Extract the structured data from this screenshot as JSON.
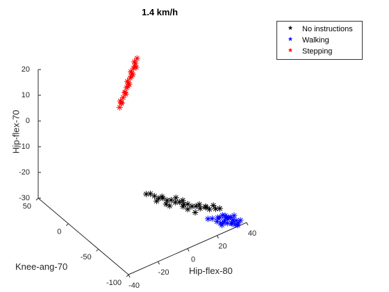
{
  "chart_data": {
    "type": "scatter",
    "projection": "3d",
    "title": "1.4 km/h",
    "xlabel": "Hip-flex-80",
    "ylabel": "Knee-ang-70",
    "zlabel": "Hip-flex-70",
    "xlim": [
      -40,
      40
    ],
    "ylim": [
      -100,
      50
    ],
    "zlim": [
      -30,
      20
    ],
    "xticks": [
      "-40",
      "-20",
      "0",
      "20",
      "40"
    ],
    "yticks": [
      "-100",
      "-50",
      "0",
      "50"
    ],
    "zticks": [
      "-30",
      "-20",
      "-10",
      "0",
      "10",
      "20"
    ],
    "grid": false,
    "legend_position": "top-right, outside",
    "series": [
      {
        "name": "No instructions",
        "color": "#000000",
        "marker": "*",
        "points": [
          {
            "x": 30,
            "y": -80,
            "z": -26
          },
          {
            "x": 28,
            "y": -78,
            "z": -26
          },
          {
            "x": 25,
            "y": -75,
            "z": -26
          },
          {
            "x": 23,
            "y": -74,
            "z": -25
          },
          {
            "x": 20,
            "y": -72,
            "z": -25
          },
          {
            "x": 18,
            "y": -70,
            "z": -24
          },
          {
            "x": 16,
            "y": -68,
            "z": -24
          },
          {
            "x": 14,
            "y": -66,
            "z": -23
          },
          {
            "x": 12,
            "y": -64,
            "z": -23
          },
          {
            "x": 10,
            "y": -62,
            "z": -22
          },
          {
            "x": 8,
            "y": -60,
            "z": -22
          },
          {
            "x": 6,
            "y": -58,
            "z": -21
          },
          {
            "x": 4,
            "y": -56,
            "z": -21
          },
          {
            "x": 2,
            "y": -54,
            "z": -20
          },
          {
            "x": 0,
            "y": -52,
            "z": -20
          },
          {
            "x": -2,
            "y": -50,
            "z": -19
          },
          {
            "x": -4,
            "y": -48,
            "z": -18
          },
          {
            "x": -6,
            "y": -46,
            "z": -18
          },
          {
            "x": 22,
            "y": -76,
            "z": -24
          },
          {
            "x": 17,
            "y": -71,
            "z": -26
          },
          {
            "x": 11,
            "y": -65,
            "z": -21
          },
          {
            "x": 5,
            "y": -58,
            "z": -23
          },
          {
            "x": 1,
            "y": -55,
            "z": -19
          },
          {
            "x": 26,
            "y": -79,
            "z": -24
          },
          {
            "x": 14,
            "y": -66,
            "z": -25
          },
          {
            "x": 8,
            "y": -61,
            "z": -20
          },
          {
            "x": -1,
            "y": -51,
            "z": -21
          },
          {
            "x": 19,
            "y": -73,
            "z": -23
          },
          {
            "x": 3,
            "y": -57,
            "z": -22
          },
          {
            "x": 12,
            "y": -63,
            "z": -24
          }
        ]
      },
      {
        "name": "Walking",
        "color": "#0000ff",
        "marker": "*",
        "points": [
          {
            "x": 35,
            "y": -95,
            "z": -29
          },
          {
            "x": 33,
            "y": -92,
            "z": -30
          },
          {
            "x": 32,
            "y": -90,
            "z": -28
          },
          {
            "x": 30,
            "y": -88,
            "z": -29
          },
          {
            "x": 28,
            "y": -86,
            "z": -30
          },
          {
            "x": 27,
            "y": -84,
            "z": -28
          },
          {
            "x": 34,
            "y": -94,
            "z": -27
          },
          {
            "x": 31,
            "y": -90,
            "z": -30
          },
          {
            "x": 29,
            "y": -87,
            "z": -27
          },
          {
            "x": 36,
            "y": -96,
            "z": -30
          },
          {
            "x": 33,
            "y": -91,
            "z": -28
          },
          {
            "x": 30,
            "y": -89,
            "z": -27
          },
          {
            "x": 26,
            "y": -85,
            "z": -29
          },
          {
            "x": 35,
            "y": -93,
            "z": -31
          },
          {
            "x": 32,
            "y": -88,
            "z": -29
          },
          {
            "x": 29,
            "y": -86,
            "z": -31
          },
          {
            "x": 37,
            "y": -97,
            "z": -29
          },
          {
            "x": 34,
            "y": -92,
            "z": -29
          },
          {
            "x": 31,
            "y": -89,
            "z": -28
          },
          {
            "x": 28,
            "y": -85,
            "z": -28
          },
          {
            "x": 24,
            "y": -82,
            "z": -28
          },
          {
            "x": 22,
            "y": -80,
            "z": -28
          },
          {
            "x": 36,
            "y": -95,
            "z": -31
          },
          {
            "x": 33,
            "y": -93,
            "z": -30
          },
          {
            "x": 30,
            "y": -87,
            "z": -30
          }
        ]
      },
      {
        "name": "Stepping",
        "color": "#ff0000",
        "marker": "*",
        "points": [
          {
            "x": 0,
            "y": 10,
            "z": 5
          },
          {
            "x": 2,
            "y": 12,
            "z": 6
          },
          {
            "x": 4,
            "y": 14,
            "z": 7
          },
          {
            "x": 6,
            "y": 16,
            "z": 8
          },
          {
            "x": 8,
            "y": 18,
            "z": 9
          },
          {
            "x": 10,
            "y": 20,
            "z": 10
          },
          {
            "x": 12,
            "y": 22,
            "z": 11
          },
          {
            "x": 14,
            "y": 24,
            "z": 12
          },
          {
            "x": 16,
            "y": 26,
            "z": 13
          },
          {
            "x": -2,
            "y": 8,
            "z": 4
          },
          {
            "x": 1,
            "y": 12,
            "z": 4
          },
          {
            "x": 5,
            "y": 15,
            "z": 6
          },
          {
            "x": 9,
            "y": 19,
            "z": 8
          },
          {
            "x": 13,
            "y": 23,
            "z": 10
          },
          {
            "x": 17,
            "y": 27,
            "z": 11
          },
          {
            "x": 3,
            "y": 11,
            "z": 8
          },
          {
            "x": 7,
            "y": 17,
            "z": 10
          },
          {
            "x": 11,
            "y": 21,
            "z": 12
          },
          {
            "x": 15,
            "y": 25,
            "z": 14
          },
          {
            "x": -1,
            "y": 9,
            "z": 6
          },
          {
            "x": 6,
            "y": 14,
            "z": 9
          },
          {
            "x": 10,
            "y": 18,
            "z": 11
          },
          {
            "x": 14,
            "y": 22,
            "z": 13
          },
          {
            "x": 18,
            "y": 28,
            "z": 14
          }
        ]
      }
    ]
  }
}
